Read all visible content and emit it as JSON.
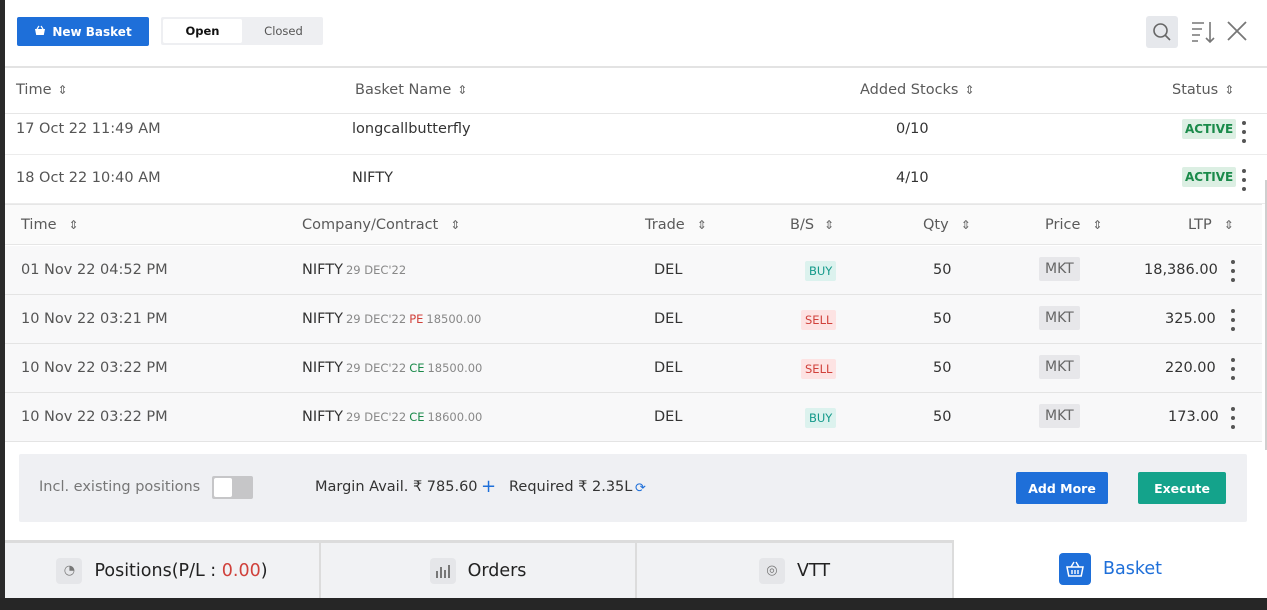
{
  "toolbar": {
    "new_basket_label": "New Basket",
    "toggle": [
      "Open",
      "Closed"
    ]
  },
  "basket_table": {
    "headers": [
      "Time",
      "Basket Name",
      "Added Stocks",
      "Status"
    ],
    "rows": [
      {
        "time": "17 Oct 22 11:49 AM",
        "name": "longcallbutterfly",
        "added": "0/10",
        "status": "ACTIVE"
      },
      {
        "time": "18 Oct 22 10:40 AM",
        "name": "NIFTY",
        "added": "4/10",
        "status": "ACTIVE"
      }
    ]
  },
  "orders_table": {
    "headers": [
      "Time",
      "Company/Contract",
      "Trade",
      "B/S",
      "Qty",
      "Price",
      "LTP"
    ],
    "rows": [
      {
        "time": "01 Nov 22 04:52 PM",
        "symbol": "NIFTY",
        "expiry": "29 DEC'22",
        "opt": "",
        "strike": "",
        "trade": "DEL",
        "bs": "BUY",
        "qty": "50",
        "price": "MKT",
        "ltp": "18,386.00"
      },
      {
        "time": "10 Nov 22 03:21 PM",
        "symbol": "NIFTY",
        "expiry": "29 DEC'22",
        "opt": "PE",
        "strike": "18500.00",
        "trade": "DEL",
        "bs": "SELL",
        "qty": "50",
        "price": "MKT",
        "ltp": "325.00"
      },
      {
        "time": "10 Nov 22 03:22 PM",
        "symbol": "NIFTY",
        "expiry": "29 DEC'22",
        "opt": "CE",
        "strike": "18500.00",
        "trade": "DEL",
        "bs": "SELL",
        "qty": "50",
        "price": "MKT",
        "ltp": "220.00"
      },
      {
        "time": "10 Nov 22 03:22 PM",
        "symbol": "NIFTY",
        "expiry": "29 DEC'22",
        "opt": "CE",
        "strike": "18600.00",
        "trade": "DEL",
        "bs": "BUY",
        "qty": "50",
        "price": "MKT",
        "ltp": "173.00"
      }
    ]
  },
  "footer": {
    "incl_label": "Incl. existing positions",
    "margin_label": "Margin Avail. ₹ 785.60",
    "required_label": "Required ₹ 2.35L",
    "add_more": "Add More",
    "execute": "Execute"
  },
  "tabs": {
    "positions_prefix": "Positions(P/L : ",
    "positions_value": "0.00",
    "positions_suffix": ")",
    "orders": "Orders",
    "vtt": "VTT",
    "basket": "Basket"
  },
  "colors": {
    "accent": "#1e6fd9",
    "execute": "#14a38b",
    "buy": "#13998a",
    "sell": "#d0413b"
  }
}
